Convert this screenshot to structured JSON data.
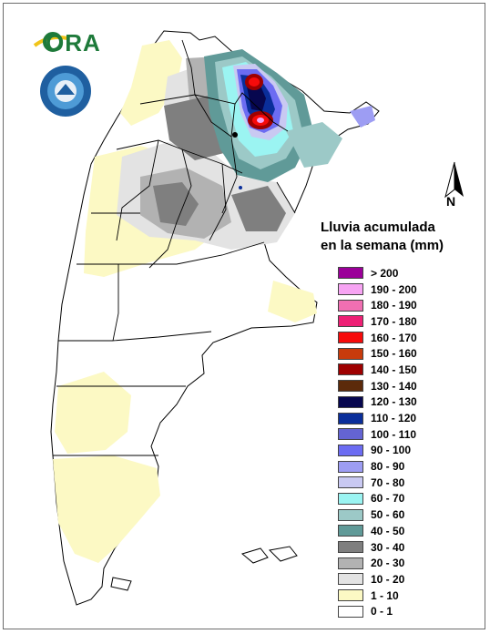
{
  "logo": {
    "text": "ORA"
  },
  "legend": {
    "title_line1": "Lluvia acumulada",
    "title_line2": "en la semana (mm)",
    "items": [
      {
        "label": "> 200",
        "color": "#9b0099"
      },
      {
        "label": "190 - 200",
        "color": "#f7a4f3"
      },
      {
        "label": "180 - 190",
        "color": "#f06fb2"
      },
      {
        "label": "170 - 180",
        "color": "#ee2075"
      },
      {
        "label": "160 - 170",
        "color": "#f60b0b"
      },
      {
        "label": "150 - 160",
        "color": "#c83b0c"
      },
      {
        "label": "140 - 150",
        "color": "#9e0000"
      },
      {
        "label": "130 - 140",
        "color": "#5c2a0a"
      },
      {
        "label": "120 - 130",
        "color": "#07074f"
      },
      {
        "label": "110 - 120",
        "color": "#0a2e9a"
      },
      {
        "label": "100 - 110",
        "color": "#6464d3"
      },
      {
        "label": "90 - 100",
        "color": "#6c6cf2"
      },
      {
        "label": "80 - 90",
        "color": "#9d9df3"
      },
      {
        "label": "70 - 80",
        "color": "#c9c9f2"
      },
      {
        "label": "60 - 70",
        "color": "#9bf4f2"
      },
      {
        "label": "50 - 60",
        "color": "#9cc9c7"
      },
      {
        "label": "40 - 50",
        "color": "#609a98"
      },
      {
        "label": "30 - 40",
        "color": "#7f7f7f"
      },
      {
        "label": "20 - 30",
        "color": "#b2b2b2"
      },
      {
        "label": "10 - 20",
        "color": "#e3e3e3"
      },
      {
        "label": "1 - 10",
        "color": "#fcf9c4"
      },
      {
        "label": "0 - 1",
        "color": "#ffffff"
      }
    ]
  },
  "compass": {
    "label": "N"
  }
}
